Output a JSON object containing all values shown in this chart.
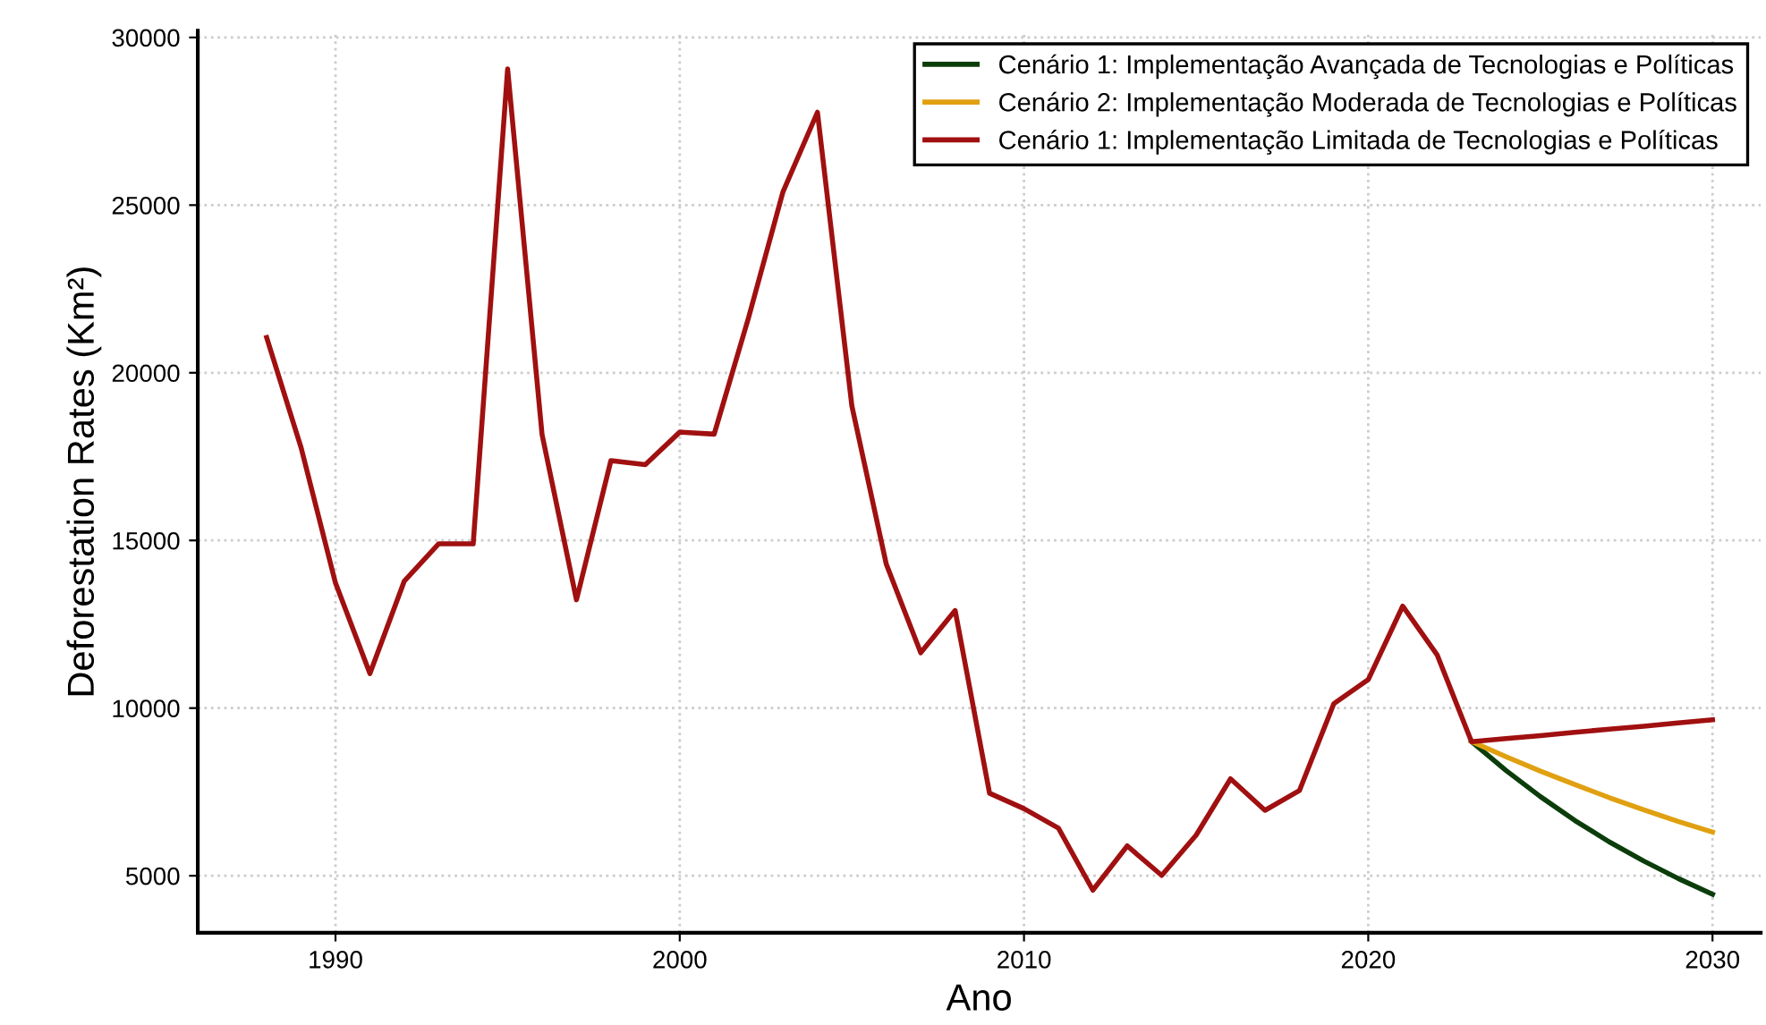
{
  "chart_data": {
    "type": "line",
    "xlabel": "Ano",
    "ylabel": "Deforestation Rates (Km²)",
    "xlim": [
      1986,
      2031.4
    ],
    "ylim": [
      3300,
      30200
    ],
    "xticks": [
      1990,
      2000,
      2010,
      2020,
      2030
    ],
    "yticks": [
      5000,
      10000,
      15000,
      20000,
      25000,
      30000
    ],
    "grid": true,
    "legend": "top right",
    "line_style": "solid",
    "marker": "none",
    "series": [
      {
        "name": "Cenário 1: Implementação Avançada de Tecnologias e Políticas",
        "color": "#0b3d0b",
        "x": [
          2023,
          2024,
          2025,
          2026,
          2027,
          2028,
          2029,
          2030
        ],
        "values": [
          9000,
          8140,
          7360,
          6650,
          6010,
          5440,
          4920,
          4450
        ]
      },
      {
        "name": "Cenário 2: Implementação Moderada de Tecnologias e Políticas",
        "color": "#e0a010",
        "x": [
          2023,
          2024,
          2025,
          2026,
          2027,
          2028,
          2029,
          2030
        ],
        "values": [
          9000,
          8550,
          8120,
          7720,
          7330,
          6970,
          6620,
          6300
        ]
      },
      {
        "name": "Cenário 1: Implementação Limitada de Tecnologias e Políticas",
        "color": "#a01010",
        "x": [
          1988,
          1989,
          1990,
          1991,
          1992,
          1993,
          1994,
          1995,
          1996,
          1997,
          1998,
          1999,
          2000,
          2001,
          2002,
          2003,
          2004,
          2005,
          2006,
          2007,
          2008,
          2009,
          2010,
          2011,
          2012,
          2013,
          2014,
          2015,
          2016,
          2017,
          2018,
          2019,
          2020,
          2021,
          2022,
          2023,
          2024,
          2025,
          2026,
          2027,
          2028,
          2029,
          2030
        ],
        "values": [
          21050,
          17770,
          13730,
          11030,
          13790,
          14900,
          14900,
          29060,
          18160,
          13230,
          17380,
          17260,
          18230,
          18170,
          21650,
          25400,
          27770,
          19010,
          14290,
          11650,
          12910,
          7460,
          7000,
          6420,
          4570,
          5890,
          5010,
          6210,
          7890,
          6950,
          7540,
          10130,
          10850,
          13040,
          11590,
          9000,
          9090,
          9180,
          9280,
          9370,
          9460,
          9560,
          9650
        ]
      }
    ]
  }
}
